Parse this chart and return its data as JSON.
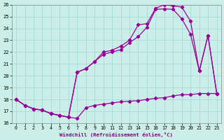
{
  "xlabel": "Windchill (Refroidissement éolien,°C)",
  "background_color": "#cceee8",
  "grid_color": "#aadddd",
  "line_color": "#990099",
  "xlim": [
    -0.5,
    23.5
  ],
  "ylim": [
    16,
    26
  ],
  "xticks": [
    0,
    1,
    2,
    3,
    4,
    5,
    6,
    7,
    8,
    9,
    10,
    11,
    12,
    13,
    14,
    15,
    16,
    17,
    18,
    19,
    20,
    21,
    22,
    23
  ],
  "yticks": [
    16,
    17,
    18,
    19,
    20,
    21,
    22,
    23,
    24,
    25,
    26
  ],
  "line1_x": [
    0,
    1,
    2,
    3,
    4,
    5,
    6,
    7,
    8,
    9,
    10,
    11,
    12,
    13,
    14,
    15,
    16,
    17,
    18,
    19,
    20,
    21,
    22,
    23
  ],
  "line1_y": [
    18.0,
    17.5,
    17.2,
    17.1,
    16.8,
    16.65,
    16.5,
    16.4,
    17.3,
    17.5,
    17.6,
    17.7,
    17.8,
    17.85,
    17.9,
    18.0,
    18.1,
    18.15,
    18.3,
    18.4,
    18.4,
    18.5,
    18.5,
    18.5
  ],
  "line2_x": [
    0,
    1,
    2,
    3,
    4,
    5,
    6,
    7,
    8,
    9,
    10,
    11,
    12,
    13,
    14,
    15,
    16,
    17,
    18,
    19,
    20,
    21,
    22,
    23
  ],
  "line2_y": [
    18.0,
    17.5,
    17.2,
    17.1,
    16.8,
    16.65,
    16.5,
    20.3,
    20.6,
    21.2,
    21.8,
    22.0,
    22.2,
    22.8,
    23.3,
    24.1,
    25.6,
    25.65,
    25.6,
    24.8,
    23.5,
    20.4,
    23.4,
    18.5
  ],
  "line3_x": [
    0,
    1,
    2,
    3,
    4,
    5,
    6,
    7,
    8,
    9,
    10,
    11,
    12,
    13,
    14,
    15,
    16,
    17,
    18,
    19,
    20,
    21,
    22,
    23
  ],
  "line3_y": [
    18.0,
    17.5,
    17.2,
    17.1,
    16.8,
    16.65,
    16.5,
    20.3,
    20.6,
    21.2,
    22.0,
    22.15,
    22.5,
    23.0,
    24.3,
    24.4,
    25.7,
    26.0,
    25.9,
    25.8,
    24.6,
    20.4,
    23.4,
    18.5
  ]
}
